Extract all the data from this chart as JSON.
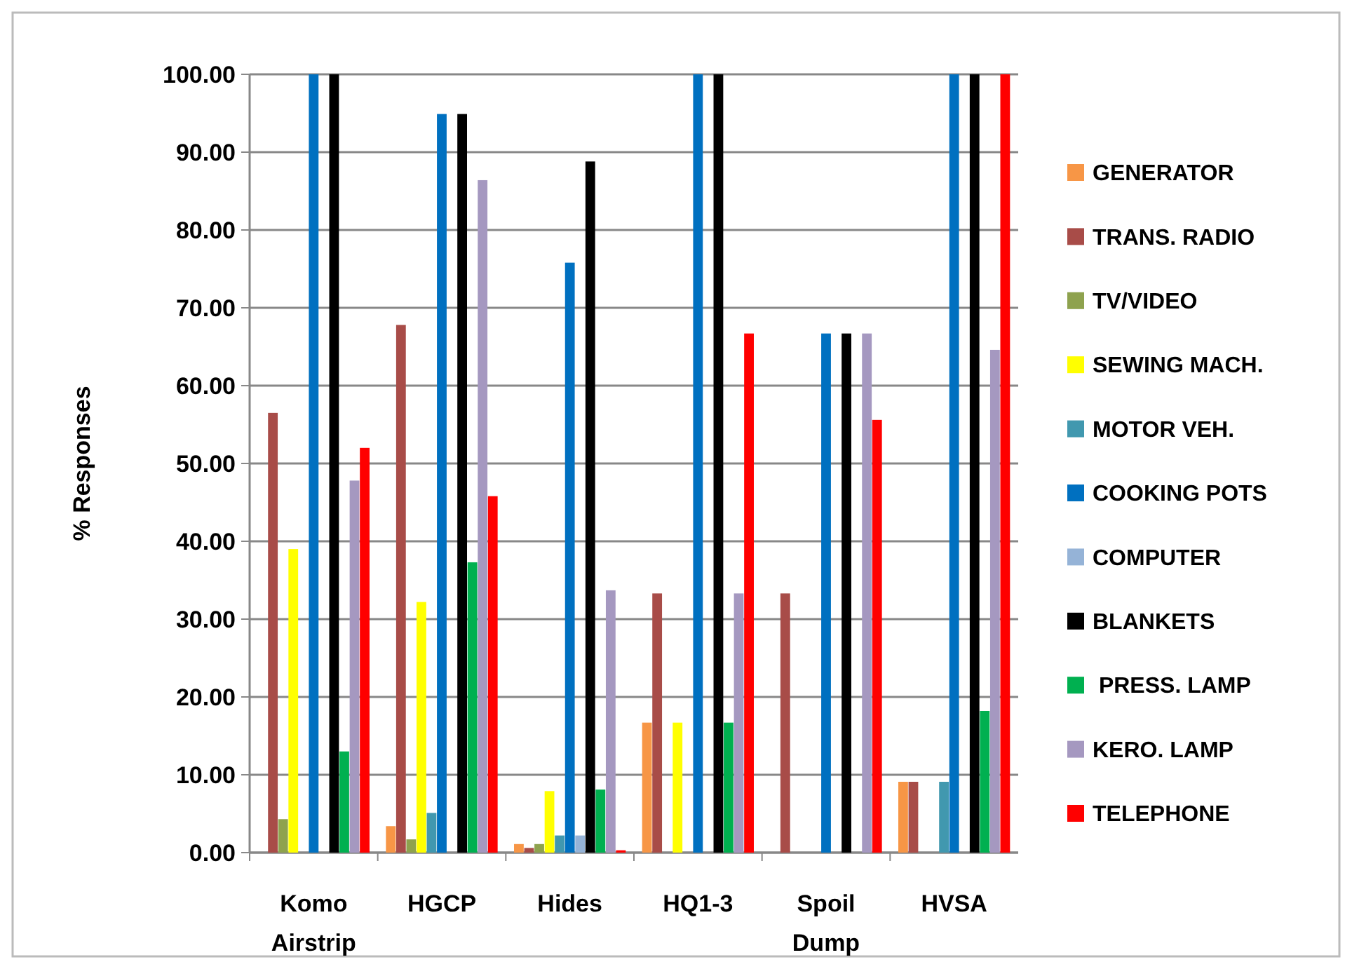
{
  "chart_data": {
    "type": "bar",
    "ylabel": "% Responses",
    "categories": [
      "Komo Airstrip",
      "HGCP",
      "Hides",
      "HQ1-3",
      "Spoil Dump",
      "HVSA"
    ],
    "ylim": [
      0,
      100
    ],
    "yticks": [
      {
        "value": 0,
        "label": "0.00"
      },
      {
        "value": 10,
        "label": "10.00"
      },
      {
        "value": 20,
        "label": "20.00"
      },
      {
        "value": 30,
        "label": "30.00"
      },
      {
        "value": 40,
        "label": "40.00"
      },
      {
        "value": 50,
        "label": "50.00"
      },
      {
        "value": 60,
        "label": "60.00"
      },
      {
        "value": 70,
        "label": "70.00"
      },
      {
        "value": 80,
        "label": "80.00"
      },
      {
        "value": 90,
        "label": "90.00"
      },
      {
        "value": 100,
        "label": "100.00"
      }
    ],
    "grid": "y",
    "legend": "right",
    "series": [
      {
        "name": "GENERATOR",
        "color": "#f79646",
        "values": [
          0,
          3.4,
          1.1,
          16.7,
          0,
          9.1
        ]
      },
      {
        "name": "TRANS. RADIO",
        "color": "#a84c48",
        "values": [
          56.5,
          67.8,
          0.6,
          33.3,
          33.3,
          9.1
        ]
      },
      {
        "name": "TV/VIDEO",
        "color": "#8ea24e",
        "values": [
          4.3,
          1.7,
          1.1,
          0,
          0,
          0
        ]
      },
      {
        "name": "SEWING MACH.",
        "color": "#ffff00",
        "values": [
          39,
          32.2,
          7.9,
          16.7,
          0,
          0
        ]
      },
      {
        "name": "MOTOR VEH.",
        "color": "#4198af",
        "values": [
          0,
          5.1,
          2.2,
          0,
          0,
          9.1
        ]
      },
      {
        "name": "COOKING POTS",
        "color": "#0070c0",
        "values": [
          100,
          94.9,
          75.8,
          100,
          66.7,
          100
        ]
      },
      {
        "name": "COMPUTER",
        "color": "#95b3d7",
        "values": [
          0,
          0,
          2.2,
          0,
          0,
          0
        ]
      },
      {
        "name": "BLANKETS",
        "color": "#000000",
        "values": [
          100,
          94.9,
          88.8,
          100,
          66.7,
          100
        ]
      },
      {
        "name": " PRESS. LAMP",
        "color": "#00b050",
        "values": [
          13,
          37.3,
          8.1,
          16.7,
          0,
          18.2
        ]
      },
      {
        "name": "KERO. LAMP",
        "color": "#a598c0",
        "values": [
          47.8,
          86.4,
          33.7,
          33.3,
          66.7,
          64.6
        ]
      },
      {
        "name": "TELEPHONE",
        "color": "#ff0000",
        "values": [
          52,
          45.8,
          0.3,
          66.7,
          55.6,
          100
        ]
      }
    ]
  }
}
